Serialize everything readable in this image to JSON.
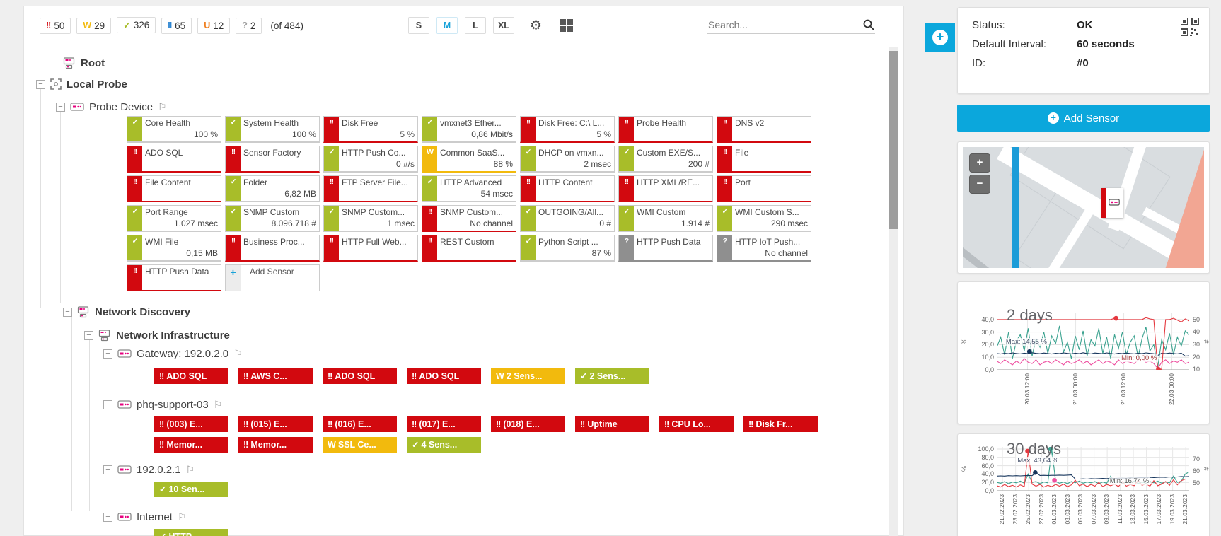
{
  "toolbar": {
    "badges": [
      {
        "glyph": "!!",
        "count": "50",
        "color": "#d2090f"
      },
      {
        "glyph": "W",
        "count": "29",
        "color": "#f2ba0d"
      },
      {
        "glyph": "✓",
        "count": "326",
        "color": "#a8bd29"
      },
      {
        "glyph": "II",
        "count": "65",
        "color": "#2e86d2"
      },
      {
        "glyph": "U",
        "count": "12",
        "color": "#ef8022"
      },
      {
        "glyph": "?",
        "count": "2",
        "color": "#9e9e9e"
      }
    ],
    "total_label": "(of 484)",
    "size_buttons": [
      {
        "label": "S",
        "active": false
      },
      {
        "label": "M",
        "active": true
      },
      {
        "label": "L",
        "active": false
      },
      {
        "label": "XL",
        "active": false
      }
    ],
    "search_placeholder": "Search..."
  },
  "tree": {
    "root_label": "Root",
    "local_probe_label": "Local Probe",
    "probe_device": {
      "label": "Probe Device",
      "add_sensor_label": "Add Sensor",
      "tiles": [
        {
          "n": "Core Health",
          "v": "100 %",
          "s": "ok"
        },
        {
          "n": "System Health",
          "v": "100 %",
          "s": "ok"
        },
        {
          "n": "Disk Free",
          "v": "5 %",
          "s": "err"
        },
        {
          "n": "vmxnet3 Ether...",
          "v": "0,86 Mbit/s",
          "s": "ok"
        },
        {
          "n": "Disk Free: C:\\ L...",
          "v": "5 %",
          "s": "err"
        },
        {
          "n": "Probe Health",
          "v": "",
          "s": "err"
        },
        {
          "n": "DNS v2",
          "v": "",
          "s": "err"
        },
        {
          "n": "ADO SQL",
          "v": "",
          "s": "err"
        },
        {
          "n": "Sensor Factory",
          "v": "",
          "s": "err"
        },
        {
          "n": "HTTP Push Co...",
          "v": "0 #/s",
          "s": "ok"
        },
        {
          "n": "Common SaaS...",
          "v": "88 %",
          "s": "warn"
        },
        {
          "n": "DHCP on vmxn...",
          "v": "2 msec",
          "s": "ok"
        },
        {
          "n": "Custom EXE/S...",
          "v": "200 #",
          "s": "ok"
        },
        {
          "n": "File",
          "v": "",
          "s": "err"
        },
        {
          "n": "File Content",
          "v": "",
          "s": "err"
        },
        {
          "n": "Folder",
          "v": "6,82 MB",
          "s": "ok"
        },
        {
          "n": "FTP Server File...",
          "v": "",
          "s": "err"
        },
        {
          "n": "HTTP Advanced",
          "v": "54 msec",
          "s": "ok"
        },
        {
          "n": "HTTP Content",
          "v": "",
          "s": "err"
        },
        {
          "n": "HTTP XML/RE...",
          "v": "",
          "s": "err"
        },
        {
          "n": "Port",
          "v": "",
          "s": "err"
        },
        {
          "n": "Port Range",
          "v": "1.027 msec",
          "s": "ok"
        },
        {
          "n": "SNMP Custom",
          "v": "8.096.718 #",
          "s": "ok"
        },
        {
          "n": "SNMP Custom...",
          "v": "1 msec",
          "s": "ok"
        },
        {
          "n": "SNMP Custom...",
          "v": "No channel",
          "s": "err"
        },
        {
          "n": "OUTGOING/All...",
          "v": "0 #",
          "s": "ok"
        },
        {
          "n": "WMI Custom",
          "v": "1.914 #",
          "s": "ok"
        },
        {
          "n": "WMI Custom S...",
          "v": "290 msec",
          "s": "ok"
        },
        {
          "n": "WMI File",
          "v": "0,15 MB",
          "s": "ok"
        },
        {
          "n": "Business Proc...",
          "v": "",
          "s": "err"
        },
        {
          "n": "HTTP Full Web...",
          "v": "",
          "s": "err"
        },
        {
          "n": "REST Custom",
          "v": "",
          "s": "err"
        },
        {
          "n": "Python Script ...",
          "v": "87 %",
          "s": "ok"
        },
        {
          "n": "HTTP Push Data",
          "v": "",
          "s": "unk"
        },
        {
          "n": "HTTP IoT Push...",
          "v": "No channel",
          "s": "unk"
        },
        {
          "n": "HTTP Push Data",
          "v": "",
          "s": "err"
        }
      ]
    },
    "network_discovery_label": "Network Discovery",
    "network_infrastructure_label": "Network Infrastructure",
    "devices": [
      {
        "label": "Gateway: 192.0.2.0",
        "rows": [
          [
            {
              "s": "err",
              "t": "ADO SQL"
            },
            {
              "s": "err",
              "t": "AWS C..."
            },
            {
              "s": "err",
              "t": "ADO SQL"
            },
            {
              "s": "err",
              "t": "ADO SQL"
            },
            {
              "s": "warn",
              "t": "2 Sens..."
            },
            {
              "s": "ok",
              "t": "2 Sens..."
            }
          ]
        ]
      },
      {
        "label": "phq-support-03",
        "rows": [
          [
            {
              "s": "err",
              "t": "(003) E..."
            },
            {
              "s": "err",
              "t": "(015) E..."
            },
            {
              "s": "err",
              "t": "(016) E..."
            },
            {
              "s": "err",
              "t": "(017) E..."
            },
            {
              "s": "err",
              "t": "(018) E..."
            },
            {
              "s": "err",
              "t": "Uptime"
            },
            {
              "s": "err",
              "t": "CPU Lo..."
            },
            {
              "s": "err",
              "t": "Disk Fr..."
            }
          ],
          [
            {
              "s": "err",
              "t": "Memor..."
            },
            {
              "s": "err",
              "t": "Memor..."
            },
            {
              "s": "warn",
              "t": "SSL Ce..."
            },
            {
              "s": "ok",
              "t": "4 Sens..."
            }
          ]
        ]
      },
      {
        "label": "192.0.2.1",
        "rows": [
          [
            {
              "s": "ok",
              "t": "10 Sen..."
            }
          ]
        ]
      },
      {
        "label": "Internet",
        "rows": [
          [
            {
              "s": "ok",
              "t": "HTTP..."
            }
          ]
        ]
      }
    ],
    "glyphs": {
      "err": "!!",
      "warn": "W",
      "ok": "✓",
      "unk": "?"
    }
  },
  "details": {
    "status_label": "Status:",
    "status_value": "OK",
    "interval_label": "Default Interval:",
    "interval_value": "60 seconds",
    "id_label": "ID:",
    "id_value": "#0",
    "add_sensor_label": "Add Sensor"
  },
  "map": {
    "zoom_in": "+",
    "zoom_out": "−"
  },
  "colors": {
    "accent": "#0ba7dc",
    "error": "#d2090f",
    "ok": "#a8bd29",
    "warning": "#f2ba0d",
    "unknown": "#8f8f8f"
  },
  "chart_data": [
    {
      "type": "line",
      "title": "2 days",
      "ylabel_left": "%",
      "ylabel_right": "#",
      "ylim": [
        0,
        45
      ],
      "yticks": [
        {
          "v": 40,
          "l": "40,0"
        },
        {
          "v": 30,
          "l": "30,0"
        },
        {
          "v": 20,
          "l": "20,0"
        },
        {
          "v": 10,
          "l": "10,0"
        },
        {
          "v": 0,
          "l": "0,0"
        }
      ],
      "right_ticks": [
        {
          "yf": 0.11,
          "l": "50"
        },
        {
          "yf": 0.33,
          "l": "40"
        },
        {
          "yf": 0.55,
          "l": "30"
        },
        {
          "yf": 0.77,
          "l": "20"
        },
        {
          "yf": 0.99,
          "l": "10"
        }
      ],
      "xticks": [
        {
          "f": 0.16,
          "l": "20.03 12:00"
        },
        {
          "f": 0.41,
          "l": "21.03 00:00"
        },
        {
          "f": 0.66,
          "l": "21.03 12:00"
        },
        {
          "f": 0.91,
          "l": "22.03 00:00"
        }
      ],
      "series": [
        {
          "name": "teal",
          "color": "#3aa28f",
          "vals": [
            18,
            26,
            12,
            30,
            9,
            23,
            28,
            15,
            33,
            11,
            25,
            18,
            30,
            13,
            27,
            21,
            35,
            14,
            22,
            9,
            27,
            16,
            31,
            11,
            24,
            19,
            33,
            13,
            26,
            9,
            28,
            17,
            30,
            12,
            22,
            27,
            10,
            25,
            34,
            15,
            20,
            2,
            24,
            16,
            29,
            12,
            26,
            19,
            31,
            28
          ]
        },
        {
          "name": "pink",
          "color": "#ee4fa0",
          "vals": [
            7,
            5,
            8,
            6,
            4,
            7,
            5,
            9,
            6,
            5,
            8,
            4,
            6,
            7,
            5,
            8,
            6,
            4,
            7,
            5,
            6,
            8,
            5,
            7,
            4,
            6,
            8,
            5,
            7,
            6,
            4,
            8,
            5,
            7,
            6,
            5,
            8,
            9,
            6,
            7,
            5,
            1,
            6,
            8,
            5,
            7,
            6,
            8,
            5,
            6
          ]
        },
        {
          "name": "navy",
          "color": "#16355c",
          "vals": [
            13,
            12.6,
            13.2,
            12.8,
            13.5,
            13,
            12.7,
            13.3,
            12.9,
            13.6,
            13.1,
            12.8,
            13.4,
            13,
            12.6,
            13.2,
            12.9,
            13.5,
            13.1,
            12.7,
            13.3,
            12.9,
            13.6,
            13,
            12.7,
            13.4,
            13.1,
            12.8,
            13.5,
            13,
            12.6,
            13.2,
            12.9,
            13.4,
            13,
            12.7,
            13.3,
            12.9,
            13.5,
            13.1,
            12.8,
            11.5,
            13.2,
            12.9,
            13.4,
            13,
            12.7,
            13.3,
            10.9,
            11.2
          ]
        },
        {
          "name": "red",
          "color": "#e5383f",
          "vals": [
            40,
            40,
            40,
            40,
            40,
            40,
            40,
            40,
            40,
            40,
            40,
            40,
            40,
            40,
            40,
            40,
            40,
            40,
            40,
            40,
            40,
            40,
            40,
            40,
            40,
            40,
            40,
            40,
            40,
            40,
            41,
            40,
            40,
            40,
            40,
            40,
            40,
            40,
            41.5,
            40.5,
            40,
            0,
            0.5,
            40,
            40,
            41,
            39.5,
            38,
            40.5,
            39
          ]
        }
      ],
      "markers": [
        {
          "xf": 0.62,
          "v": 41,
          "color": "#e5383f"
        },
        {
          "xf": 0.84,
          "v": 0.5,
          "color": "#e5383f"
        },
        {
          "xf": 0.17,
          "v": 14.5,
          "color": "#16355c"
        }
      ],
      "annotations": [
        {
          "xf": 0.04,
          "v": 19,
          "text": "Max: 14,55 %",
          "color": "#44506a"
        },
        {
          "xf": 0.64,
          "v": 6,
          "text": "Min: 0,00 %",
          "color": "#a33636"
        }
      ]
    },
    {
      "type": "line",
      "title": "30 days",
      "ylabel_left": "%",
      "ylabel_right": "#",
      "ylim": [
        0,
        105
      ],
      "yticks": [
        {
          "v": 100,
          "l": "100,0"
        },
        {
          "v": 80,
          "l": "80,0"
        },
        {
          "v": 60,
          "l": "60,0"
        },
        {
          "v": 40,
          "l": "40,0"
        },
        {
          "v": 20,
          "l": "20,0"
        },
        {
          "v": 0,
          "l": "0,0"
        }
      ],
      "right_ticks": [
        {
          "yf": 0.27,
          "l": "70"
        },
        {
          "yf": 0.55,
          "l": "60"
        },
        {
          "yf": 0.83,
          "l": "50"
        }
      ],
      "xticks": [
        {
          "f": 0.03,
          "l": "21.02.2023"
        },
        {
          "f": 0.098,
          "l": "23.02.2023"
        },
        {
          "f": 0.166,
          "l": "25.02.2023"
        },
        {
          "f": 0.234,
          "l": "27.02.2023"
        },
        {
          "f": 0.302,
          "l": "01.03.2023"
        },
        {
          "f": 0.37,
          "l": "03.03.2023"
        },
        {
          "f": 0.438,
          "l": "05.03.2023"
        },
        {
          "f": 0.506,
          "l": "07.03.2023"
        },
        {
          "f": 0.574,
          "l": "09.03.2023"
        },
        {
          "f": 0.642,
          "l": "11.03.2023"
        },
        {
          "f": 0.71,
          "l": "13.03.2023"
        },
        {
          "f": 0.778,
          "l": "15.03.2023"
        },
        {
          "f": 0.846,
          "l": "17.03.2023"
        },
        {
          "f": 0.914,
          "l": "19.03.2023"
        },
        {
          "f": 0.982,
          "l": "21.03.2023"
        }
      ],
      "series": [
        {
          "name": "teal",
          "color": "#3aa28f",
          "vals": [
            20,
            18,
            22,
            17,
            21,
            19,
            23,
            18,
            40,
            20,
            22,
            17,
            21,
            19,
            100,
            22,
            18,
            21,
            17,
            22,
            19,
            23,
            18,
            21,
            19,
            22,
            17,
            21,
            18,
            35,
            20,
            22,
            18,
            21,
            19,
            23,
            17,
            21,
            18,
            22,
            19,
            23,
            18,
            21,
            19,
            35,
            20,
            23,
            40,
            45
          ]
        },
        {
          "name": "red",
          "color": "#e5383f",
          "vals": [
            12,
            9,
            15,
            10,
            13,
            9,
            14,
            10,
            95,
            16,
            11,
            15,
            9,
            13,
            10,
            15,
            11,
            16,
            10,
            14,
            25,
            12,
            16,
            10,
            15,
            11,
            20,
            10,
            15,
            12,
            16,
            10,
            22,
            11,
            15,
            12,
            25,
            13,
            17,
            11,
            24,
            12,
            16,
            22,
            13,
            26,
            14,
            24,
            28,
            28
          ]
        },
        {
          "name": "navy",
          "color": "#16355c",
          "vals": [
            35,
            35.5,
            35,
            36,
            35.5,
            36,
            35.5,
            36,
            36.5,
            36,
            43,
            36.5,
            37,
            36.5,
            37,
            37,
            37.5,
            37,
            37.5,
            38,
            28,
            28,
            28.5,
            28,
            29,
            28.5,
            29,
            29.5,
            29,
            30,
            29.5,
            30,
            30.5,
            30,
            31,
            30.5,
            31,
            31.5,
            31,
            32,
            31.5,
            32,
            32.5,
            32,
            33,
            32.5,
            33,
            34,
            33.5,
            34
          ]
        }
      ],
      "markers": [
        {
          "xf": 0.16,
          "v": 95,
          "color": "#e5383f"
        },
        {
          "xf": 0.28,
          "v": 100,
          "color": "#3aa28f"
        },
        {
          "xf": 0.2,
          "v": 43.6,
          "color": "#16355c"
        },
        {
          "xf": 0.3,
          "v": 25,
          "color": "#ee4fa0"
        }
      ],
      "annotations": [
        {
          "xf": 0.1,
          "v": 62,
          "text": "Max: 43,64 %",
          "color": "#44506a"
        },
        {
          "xf": 0.58,
          "v": 13,
          "text": "Min: 16,74 %",
          "color": "#555555"
        }
      ]
    }
  ]
}
